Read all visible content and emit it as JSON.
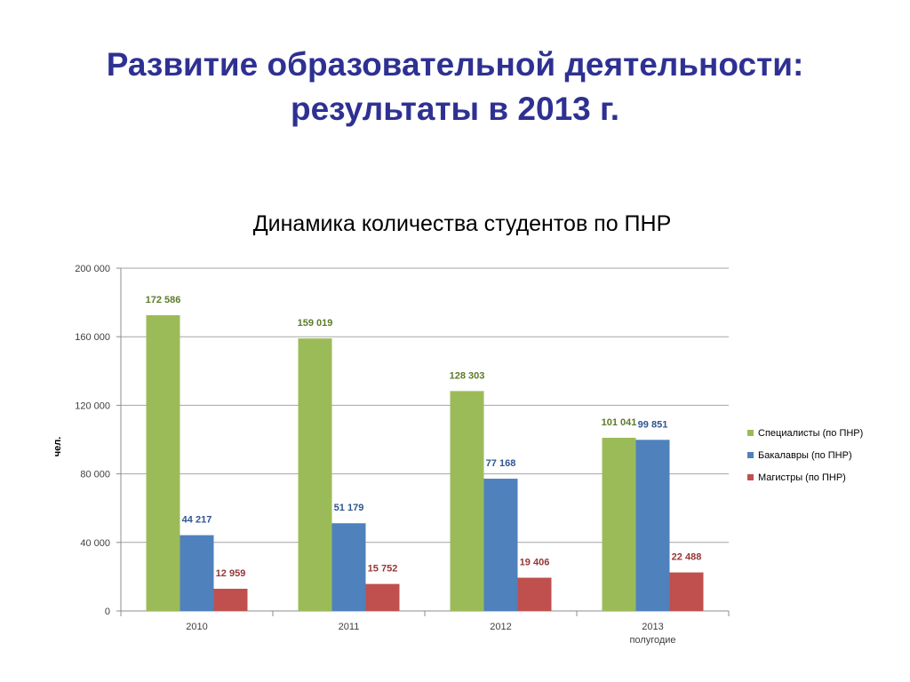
{
  "slide": {
    "title_line1": "Развитие образовательной деятельности:",
    "title_line2": "результаты в 2013 г."
  },
  "chart_data": {
    "type": "bar",
    "title": "Динамика количества студентов по ПНР",
    "ylabel": "чел.",
    "xlabel": "",
    "categories": [
      "2010",
      "2011",
      "2012",
      "2013\nполугодие"
    ],
    "ylim": [
      0,
      200000
    ],
    "yticks": [
      0,
      40000,
      80000,
      120000,
      160000,
      200000
    ],
    "ytick_labels": [
      "0",
      "40 000",
      "80 000",
      "120 000",
      "160 000",
      "200 000"
    ],
    "grid": true,
    "legend_position": "right",
    "series": [
      {
        "name": "Специалисты (по ПНР)",
        "color": "#9bbb59",
        "label_color": "#5d7a2a",
        "values": [
          172586,
          159019,
          128303,
          101041
        ],
        "labels": [
          "172 586",
          "159 019",
          "128 303",
          "101 041"
        ]
      },
      {
        "name": "Бакалавры (по ПНР)",
        "color": "#4f81bd",
        "label_color": "#2e5590",
        "values": [
          44217,
          51179,
          77168,
          99851
        ],
        "labels": [
          "44 217",
          "51 179",
          "77 168",
          "99 851"
        ]
      },
      {
        "name": "Магистры (по ПНР)",
        "color": "#c0504d",
        "label_color": "#953735",
        "values": [
          12959,
          15752,
          19406,
          22488
        ],
        "labels": [
          "12 959",
          "15 752",
          "19 406",
          "22 488"
        ]
      }
    ]
  }
}
